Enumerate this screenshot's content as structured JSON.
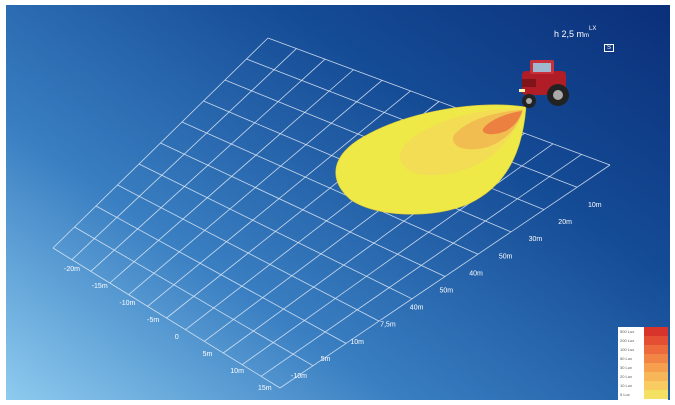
{
  "formula": {
    "prefix": "h 2,5 m",
    "sub": "m",
    "sup": "LX",
    "box": "S"
  },
  "axis_left_labels": [
    "-20m",
    "-15m",
    "-10m",
    "-5m",
    "0",
    "5m",
    "10m",
    "15m"
  ],
  "axis_right_labels": [
    "-10m",
    "5m",
    "10m",
    "7,5m",
    "40m",
    "50m",
    "40m",
    "50m",
    "30m",
    "20m",
    "10m"
  ],
  "legend": {
    "entries": [
      {
        "label": "500 Lux",
        "color": "#d9342b"
      },
      {
        "label": "200 Lux",
        "color": "#e44f34"
      },
      {
        "label": "100 Lux",
        "color": "#ec6a3c"
      },
      {
        "label": "50 Lux",
        "color": "#f28546"
      },
      {
        "label": "30 Lux",
        "color": "#f59f4f"
      },
      {
        "label": "20 Lux",
        "color": "#f7b759"
      },
      {
        "label": "10 Lux",
        "color": "#f8cc60"
      },
      {
        "label": "5 Lux",
        "color": "#f4e063"
      }
    ]
  },
  "colors": {
    "background_top": "#0b2f7a",
    "background_bottom": "#8ecbef",
    "grid": "#e6eefa",
    "light_zone": "#f2ee4e"
  }
}
